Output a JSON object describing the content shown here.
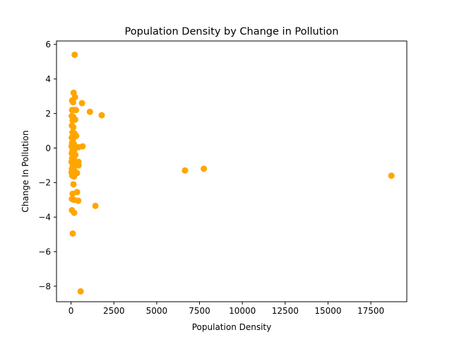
{
  "chart_data": {
    "type": "scatter",
    "title": "Population Density by Change in Pollution",
    "xlabel": "Population Density",
    "ylabel": "Change In Pollution",
    "xlim": [
      -850,
      19600
    ],
    "ylim": [
      -8.9,
      6.2
    ],
    "xticks": [
      0,
      2500,
      5000,
      7500,
      10000,
      12500,
      15000,
      17500
    ],
    "xtick_labels": [
      "0",
      "2500",
      "5000",
      "7500",
      "10000",
      "12500",
      "15000",
      "17500"
    ],
    "yticks": [
      -8,
      -6,
      -4,
      -2,
      0,
      2,
      4,
      6
    ],
    "ytick_labels": [
      "−8",
      "−6",
      "−4",
      "−2",
      "0",
      "2",
      "4",
      "6"
    ],
    "grid": false,
    "legend": "none",
    "marker_color": "#ffa500",
    "points": [
      {
        "x": 210,
        "y": 5.4
      },
      {
        "x": 150,
        "y": 3.2
      },
      {
        "x": 230,
        "y": 2.95
      },
      {
        "x": 60,
        "y": 2.75
      },
      {
        "x": 120,
        "y": 2.65
      },
      {
        "x": 640,
        "y": 2.6
      },
      {
        "x": 60,
        "y": 2.2
      },
      {
        "x": 150,
        "y": 2.2
      },
      {
        "x": 290,
        "y": 2.2
      },
      {
        "x": 1100,
        "y": 2.1
      },
      {
        "x": 1790,
        "y": 1.9
      },
      {
        "x": 40,
        "y": 1.85
      },
      {
        "x": 130,
        "y": 1.8
      },
      {
        "x": 90,
        "y": 1.6
      },
      {
        "x": 240,
        "y": 1.65
      },
      {
        "x": 50,
        "y": 1.3
      },
      {
        "x": 130,
        "y": 1.2
      },
      {
        "x": 80,
        "y": 0.9
      },
      {
        "x": 200,
        "y": 0.85
      },
      {
        "x": 300,
        "y": 0.7
      },
      {
        "x": 40,
        "y": 0.6
      },
      {
        "x": 110,
        "y": 0.5
      },
      {
        "x": 60,
        "y": 0.3
      },
      {
        "x": 160,
        "y": 0.25
      },
      {
        "x": 30,
        "y": 0.1
      },
      {
        "x": 210,
        "y": 0.05
      },
      {
        "x": 430,
        "y": 0.05
      },
      {
        "x": 670,
        "y": 0.1
      },
      {
        "x": 90,
        "y": -0.1
      },
      {
        "x": 170,
        "y": -0.15
      },
      {
        "x": 40,
        "y": -0.3
      },
      {
        "x": 120,
        "y": -0.35
      },
      {
        "x": 250,
        "y": -0.4
      },
      {
        "x": 60,
        "y": -0.6
      },
      {
        "x": 160,
        "y": -0.55
      },
      {
        "x": 30,
        "y": -0.8
      },
      {
        "x": 200,
        "y": -0.8
      },
      {
        "x": 430,
        "y": -0.8
      },
      {
        "x": 100,
        "y": -0.95
      },
      {
        "x": 300,
        "y": -1.0
      },
      {
        "x": 440,
        "y": -1.0
      },
      {
        "x": 50,
        "y": -1.2
      },
      {
        "x": 150,
        "y": -1.15
      },
      {
        "x": 30,
        "y": -1.4
      },
      {
        "x": 220,
        "y": -1.35
      },
      {
        "x": 350,
        "y": -1.45
      },
      {
        "x": 70,
        "y": -1.6
      },
      {
        "x": 170,
        "y": -1.65
      },
      {
        "x": 6650,
        "y": -1.3
      },
      {
        "x": 7750,
        "y": -1.2
      },
      {
        "x": 18700,
        "y": -1.6
      },
      {
        "x": 140,
        "y": -2.1
      },
      {
        "x": 90,
        "y": -2.65
      },
      {
        "x": 350,
        "y": -2.55
      },
      {
        "x": 50,
        "y": -2.95
      },
      {
        "x": 170,
        "y": -3.0
      },
      {
        "x": 420,
        "y": -3.05
      },
      {
        "x": 1420,
        "y": -3.35
      },
      {
        "x": 50,
        "y": -3.6
      },
      {
        "x": 180,
        "y": -3.75
      },
      {
        "x": 100,
        "y": -4.95
      },
      {
        "x": 560,
        "y": -8.3
      }
    ]
  }
}
